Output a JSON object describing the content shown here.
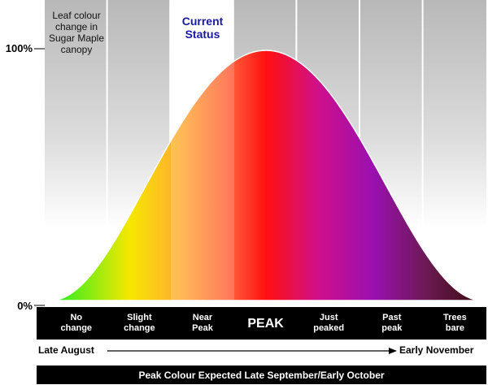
{
  "axis": {
    "top": "100%",
    "bottom": "0%"
  },
  "note": [
    "Leaf colour",
    "change in",
    "Sugar Maple",
    "canopy"
  ],
  "current_status": [
    "Current",
    "Status"
  ],
  "stages": [
    [
      "No",
      "change"
    ],
    [
      "Slight",
      "change"
    ],
    [
      "Near",
      "Peak"
    ],
    [
      "PEAK"
    ],
    [
      "Just",
      "peaked"
    ],
    [
      "Past",
      "peak"
    ],
    [
      "Trees",
      "bare"
    ]
  ],
  "timeline": {
    "start": "Late August",
    "end": "Early November"
  },
  "footer": "Peak Colour Expected Late September/Early October"
}
